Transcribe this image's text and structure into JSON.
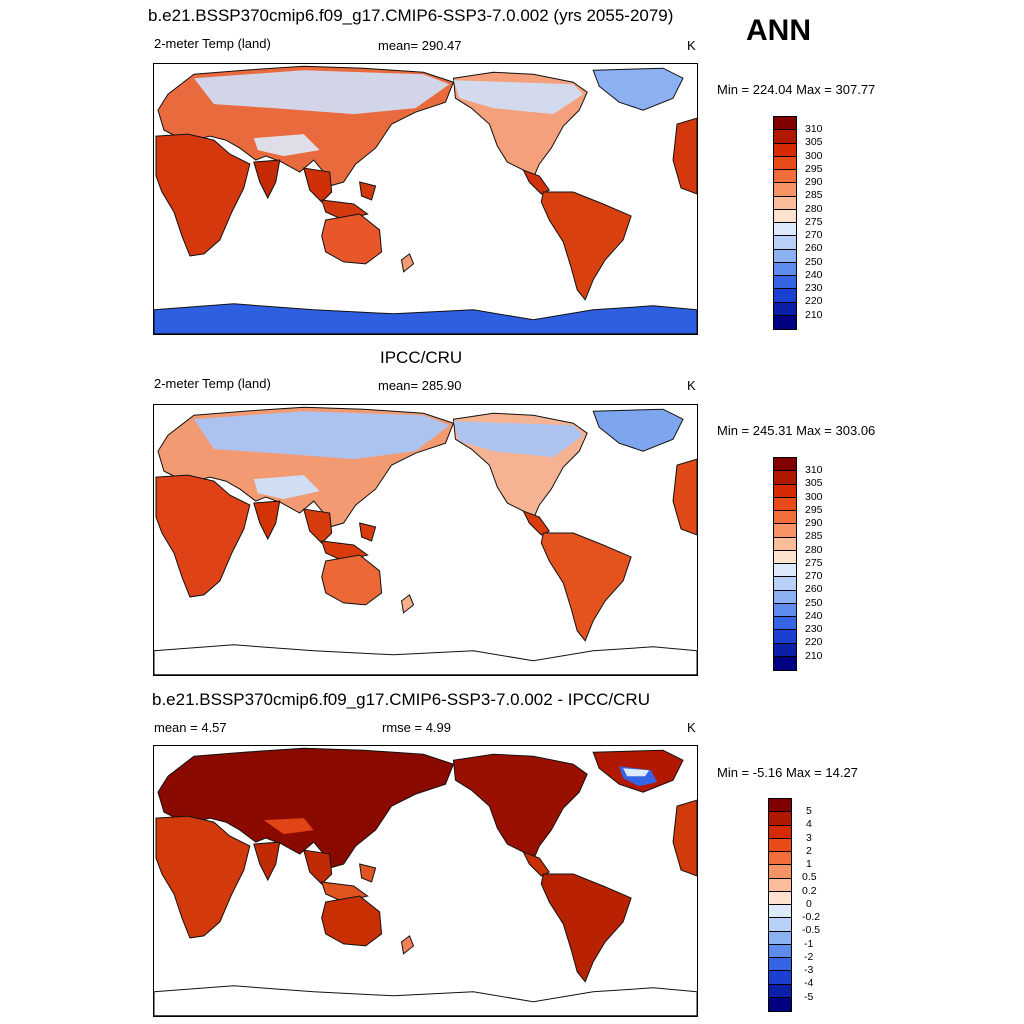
{
  "header": {
    "season": "ANN"
  },
  "panels": [
    {
      "title": "b.e21.BSSP370cmip6.f09_g17.CMIP6-SSP3-7.0.002 (yrs 2055-2079)",
      "left_label": "2-meter Temp (land)",
      "center_label": "mean= 290.47",
      "units": "K",
      "minmax": "Min = 224.04 Max = 307.77",
      "colorbar": {
        "labels": [
          "310",
          "305",
          "300",
          "295",
          "290",
          "285",
          "280",
          "275",
          "270",
          "260",
          "250",
          "240",
          "230",
          "220",
          "210"
        ],
        "colors": [
          "#800000",
          "#b01800",
          "#d62a04",
          "#e94a1a",
          "#f26d3c",
          "#f79466",
          "#fbbd9a",
          "#fde3cf",
          "#ddeafb",
          "#b9d1f8",
          "#8cb1f2",
          "#5e8bec",
          "#3565e5",
          "#1a3fd2",
          "#0b1fa8",
          "#000080"
        ]
      }
    },
    {
      "title": "IPCC/CRU",
      "left_label": "2-meter Temp (land)",
      "center_label": "mean= 285.90",
      "units": "K",
      "minmax": "Min = 245.31 Max = 303.06",
      "colorbar": {
        "labels": [
          "310",
          "305",
          "300",
          "295",
          "290",
          "285",
          "280",
          "275",
          "270",
          "260",
          "250",
          "240",
          "230",
          "220",
          "210"
        ],
        "colors": [
          "#800000",
          "#b01800",
          "#d62a04",
          "#e94a1a",
          "#f26d3c",
          "#f79466",
          "#fbbd9a",
          "#fde3cf",
          "#ddeafb",
          "#b9d1f8",
          "#8cb1f2",
          "#5e8bec",
          "#3565e5",
          "#1a3fd2",
          "#0b1fa8",
          "#000080"
        ]
      }
    },
    {
      "title": "b.e21.BSSP370cmip6.f09_g17.CMIP6-SSP3-7.0.002 - IPCC/CRU",
      "left_label": "mean =   4.57",
      "center_label": "rmse =   4.99",
      "units": "K",
      "minmax": "Min =  -5.16 Max =  14.27",
      "colorbar": {
        "labels": [
          "5",
          "4",
          "3",
          "2",
          "1",
          "0.5",
          "0.2",
          "0",
          "-0.2",
          "-0.5",
          "-1",
          "-2",
          "-3",
          "-4",
          "-5"
        ],
        "colors": [
          "#800000",
          "#b01800",
          "#d62a04",
          "#e94a1a",
          "#f26d3c",
          "#f79466",
          "#fbbd9a",
          "#fde3cf",
          "#ddeafb",
          "#b9d1f8",
          "#8cb1f2",
          "#5e8bec",
          "#3565e5",
          "#1a3fd2",
          "#0b1fa8",
          "#000080"
        ]
      }
    }
  ]
}
